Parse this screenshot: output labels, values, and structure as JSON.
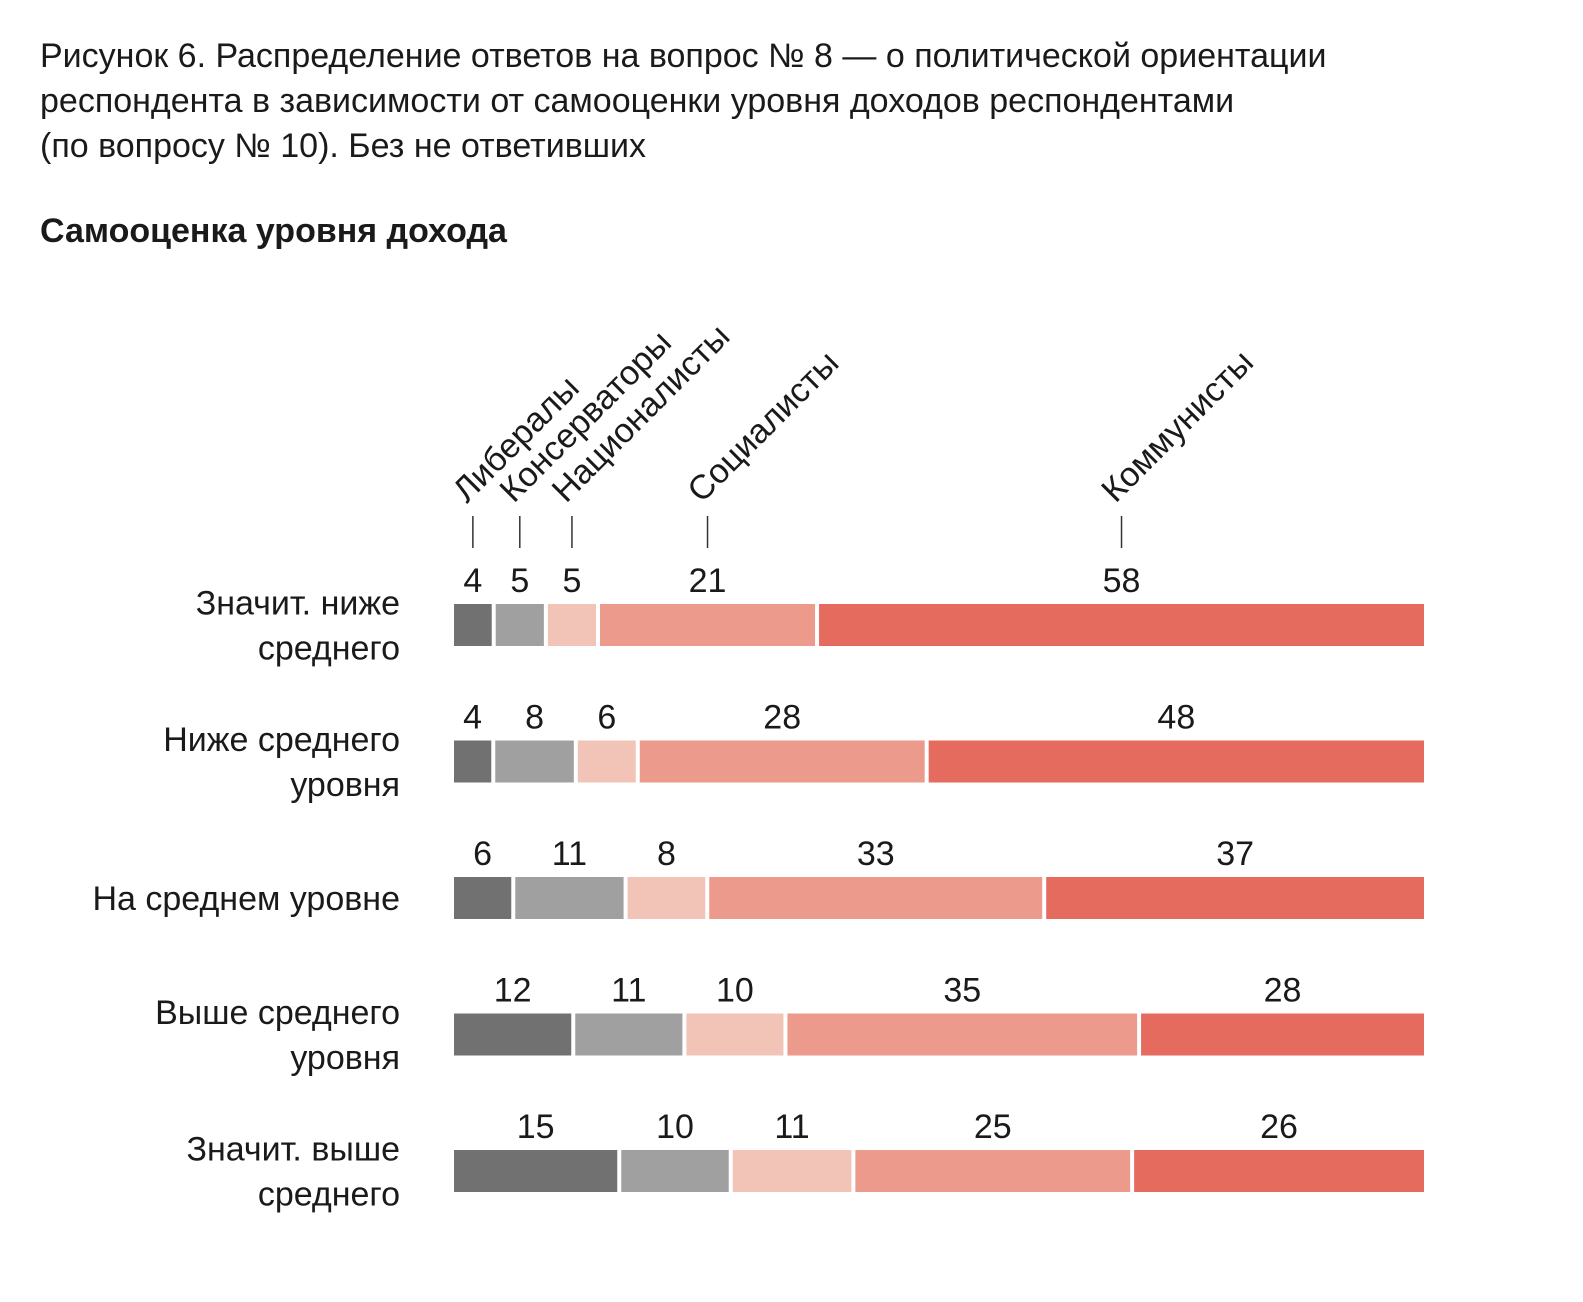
{
  "caption_lines": [
    "Рисунок 6. Распределение ответов на вопрос № 8 — о политической ориентации",
    "респондента в зависимости от самооценки уровня доходов респондентами",
    "(по вопросу № 10). Без не ответивших"
  ],
  "chart_data": {
    "type": "bar",
    "stacked": true,
    "orientation": "horizontal",
    "title": "Самооценка уровня дохода",
    "categories": [
      [
        "Значит. ниже",
        "среднего"
      ],
      [
        "Ниже среднего",
        "уровня"
      ],
      [
        "На среднем уровне"
      ],
      [
        "Выше среднего",
        "уровня"
      ],
      [
        "Значит. выше",
        "среднего"
      ]
    ],
    "series": [
      {
        "name": "Либералы",
        "color": "#717171",
        "values": [
          4,
          4,
          6,
          12,
          15
        ]
      },
      {
        "name": "Консерваторы",
        "color": "#a0a0a0",
        "values": [
          5,
          8,
          11,
          11,
          10
        ]
      },
      {
        "name": "Националисты",
        "color": "#f2c4b8",
        "values": [
          5,
          6,
          8,
          10,
          11
        ]
      },
      {
        "name": "Социалисты",
        "color": "#eb9a8b",
        "values": [
          21,
          28,
          33,
          35,
          25
        ]
      },
      {
        "name": "Коммунисты",
        "color": "#e46b5e",
        "values": [
          58,
          48,
          37,
          28,
          26
        ]
      }
    ],
    "legend": "rotated labels above first bar",
    "grid": false
  }
}
